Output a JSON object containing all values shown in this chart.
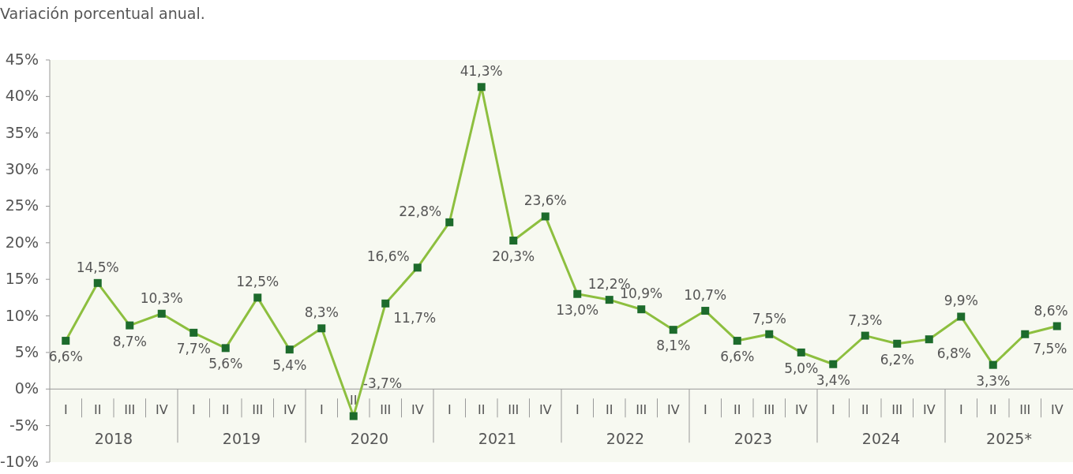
{
  "chart_data": {
    "type": "line",
    "title": "Variación porcentual anual.",
    "categories": [
      "I",
      "II",
      "III",
      "IV",
      "I",
      "II",
      "III",
      "IV",
      "I",
      "II",
      "III",
      "IV",
      "I",
      "II",
      "III",
      "IV",
      "I",
      "II",
      "III",
      "IV",
      "I",
      "II",
      "III",
      "IV",
      "I",
      "II",
      "III",
      "IV",
      "I",
      "II",
      "III",
      "IV"
    ],
    "annotations": [
      "2018",
      "2019",
      "2020",
      "2021",
      "2022",
      "2023",
      "2024",
      "2025*"
    ],
    "series": [
      {
        "color": "#8dbf3f",
        "values": [
          6.6,
          14.5,
          8.7,
          10.3,
          7.7,
          5.6,
          12.5,
          5.4,
          8.3,
          -3.7,
          11.7,
          16.6,
          22.8,
          41.3,
          20.3,
          23.6,
          13.0,
          12.2,
          10.9,
          8.1,
          10.7,
          6.6,
          7.5,
          5.0,
          3.4,
          7.3,
          6.2,
          6.8,
          9.9,
          3.3,
          7.5,
          8.6
        ],
        "value_labels": [
          "6,6%",
          "14,5%",
          "8,7%",
          "10,3%",
          "7,7%",
          "5,6%",
          "12,5%",
          "5,4%",
          "8,3%",
          "-3,7%",
          "11,7%",
          "16,6%",
          "22,8%",
          "41,3%",
          "20,3%",
          "23,6%",
          "13,0%",
          "12,2%",
          "10,9%",
          "8,1%",
          "10,7%",
          "6,6%",
          "7,5%",
          "5,0%",
          "3,4%",
          "7,3%",
          "6,2%",
          "6,8%",
          "9,9%",
          "3,3%",
          "7,5%",
          "8,6%"
        ]
      }
    ],
    "ylim": [
      -10,
      45
    ],
    "yticks": [
      {
        "value": -10,
        "label": "-10%"
      },
      {
        "value": -5,
        "label": "-5%"
      },
      {
        "value": 0,
        "label": "0%"
      },
      {
        "value": 5,
        "label": "5%"
      },
      {
        "value": 10,
        "label": "10%"
      },
      {
        "value": 15,
        "label": "15%"
      },
      {
        "value": 20,
        "label": "20%"
      },
      {
        "value": 25,
        "label": "25%"
      },
      {
        "value": 30,
        "label": "30%"
      },
      {
        "value": 35,
        "label": "35%"
      },
      {
        "value": 40,
        "label": "40%"
      },
      {
        "value": 45,
        "label": "45%"
      }
    ],
    "marker": "square"
  }
}
